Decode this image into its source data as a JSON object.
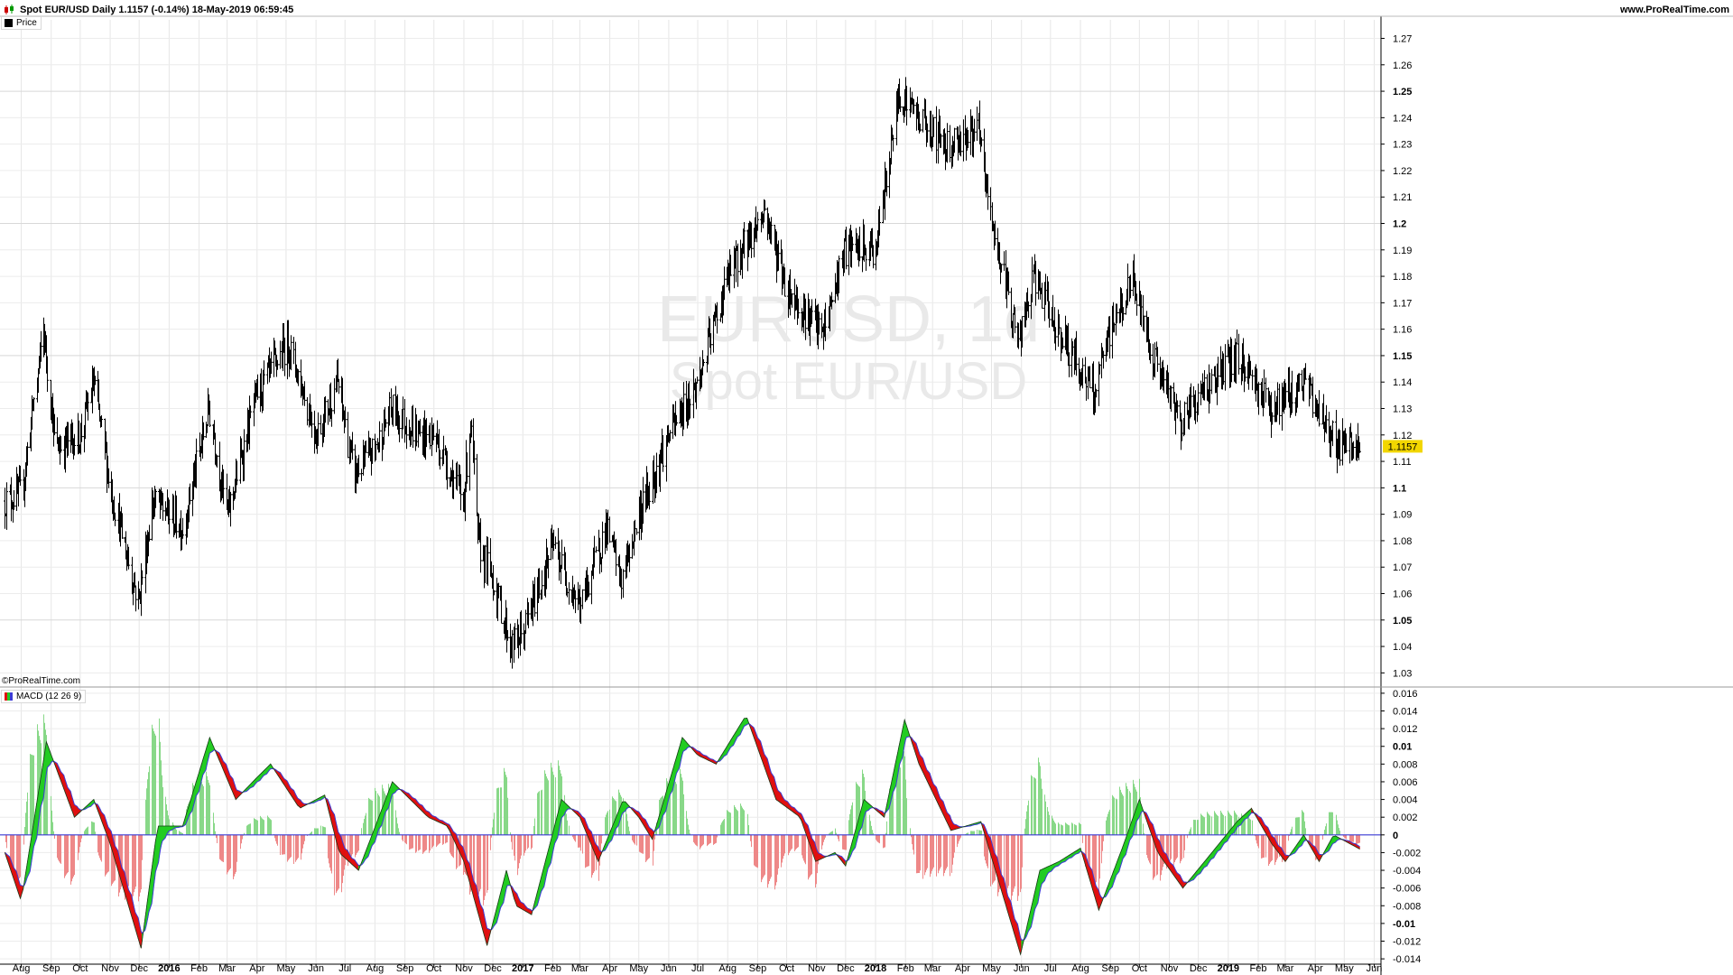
{
  "header": {
    "title": "Spot EUR/USD Daily 1.1157 (-0.14%) 18-May-2019 06:59:45",
    "brand": "www.ProRealTime.com"
  },
  "price_panel": {
    "legend": "Price",
    "legend_color": "#000000",
    "watermark_symbol": "EURUSD, 1d",
    "watermark_name": "Spot EUR/USD",
    "last_price": "1.1157",
    "last_price_bg": "#f2d600",
    "copyright": "©ProRealTime.com"
  },
  "macd_panel": {
    "legend": "MACD (12 26 9)",
    "zero_line_color": "#3b3bd6",
    "up_color": "#22cc22",
    "down_color": "#e01010",
    "hist_pos_color": "#88d888",
    "hist_neg_color": "#ee8888"
  },
  "chart_data": [
    {
      "type": "candlestick",
      "title": "Spot EUR/USD Daily",
      "series_name": "Price",
      "ylim": [
        1.025,
        1.277
      ],
      "y_ticks": [
        "1.03",
        "1.04",
        "1.05",
        "1.06",
        "1.07",
        "1.08",
        "1.09",
        "1.1",
        "1.11",
        "1.12",
        "1.13",
        "1.14",
        "1.15",
        "1.16",
        "1.17",
        "1.18",
        "1.19",
        "1.2",
        "1.21",
        "1.22",
        "1.23",
        "1.24",
        "1.25",
        "1.26",
        "1.27"
      ],
      "y_major_ticks": [
        "1.05",
        "1.1",
        "1.15",
        "1.2",
        "1.25"
      ],
      "x_ticks": [
        "Aug",
        "Sep",
        "Oct",
        "Nov",
        "Dec",
        "2016",
        "Feb",
        "Mar",
        "Apr",
        "May",
        "Jun",
        "Jul",
        "Aug",
        "Sep",
        "Oct",
        "Nov",
        "Dec",
        "2017",
        "Feb",
        "Mar",
        "Apr",
        "May",
        "Jun",
        "Jul",
        "Aug",
        "Sep",
        "Oct",
        "Nov",
        "Dec",
        "2018",
        "Feb",
        "Mar",
        "Apr",
        "May",
        "Jun",
        "Jul",
        "Aug",
        "Sep",
        "Oct",
        "Nov",
        "Dec",
        "2019",
        "Feb",
        "Mar",
        "Apr",
        "May",
        "Jun"
      ],
      "x_year_ticks": [
        "2016",
        "2017",
        "2018",
        "2019"
      ],
      "approx_path": [
        [
          "2015-07-15",
          1.095
        ],
        [
          "2015-08-01",
          1.098
        ],
        [
          "2015-08-24",
          1.16
        ],
        [
          "2015-09-05",
          1.115
        ],
        [
          "2015-10-01",
          1.12
        ],
        [
          "2015-10-15",
          1.14
        ],
        [
          "2015-11-01",
          1.1
        ],
        [
          "2015-11-30",
          1.057
        ],
        [
          "2015-12-15",
          1.095
        ],
        [
          "2016-01-01",
          1.09
        ],
        [
          "2016-01-15",
          1.085
        ],
        [
          "2016-02-11",
          1.13
        ],
        [
          "2016-03-01",
          1.09
        ],
        [
          "2016-03-31",
          1.135
        ],
        [
          "2016-05-03",
          1.155
        ],
        [
          "2016-06-01",
          1.12
        ],
        [
          "2016-06-23",
          1.14
        ],
        [
          "2016-07-10",
          1.105
        ],
        [
          "2016-08-01",
          1.115
        ],
        [
          "2016-08-18",
          1.13
        ],
        [
          "2016-09-15",
          1.12
        ],
        [
          "2016-10-01",
          1.12
        ],
        [
          "2016-10-31",
          1.095
        ],
        [
          "2016-11-08",
          1.125
        ],
        [
          "2016-11-15",
          1.08
        ],
        [
          "2016-12-01",
          1.065
        ],
        [
          "2016-12-20",
          1.04
        ],
        [
          "2017-01-01",
          1.045
        ],
        [
          "2017-02-01",
          1.078
        ],
        [
          "2017-03-01",
          1.055
        ],
        [
          "2017-03-28",
          1.085
        ],
        [
          "2017-04-13",
          1.065
        ],
        [
          "2017-05-01",
          1.09
        ],
        [
          "2017-06-01",
          1.12
        ],
        [
          "2017-07-01",
          1.14
        ],
        [
          "2017-08-01",
          1.18
        ],
        [
          "2017-09-08",
          1.205
        ],
        [
          "2017-10-01",
          1.175
        ],
        [
          "2017-11-07",
          1.158
        ],
        [
          "2017-11-30",
          1.19
        ],
        [
          "2018-01-01",
          1.19
        ],
        [
          "2018-01-25",
          1.25
        ],
        [
          "2018-02-15",
          1.24
        ],
        [
          "2018-03-15",
          1.23
        ],
        [
          "2018-04-17",
          1.235
        ],
        [
          "2018-05-01",
          1.2
        ],
        [
          "2018-05-29",
          1.155
        ],
        [
          "2018-06-14",
          1.18
        ],
        [
          "2018-07-01",
          1.165
        ],
        [
          "2018-08-15",
          1.135
        ],
        [
          "2018-09-01",
          1.16
        ],
        [
          "2018-09-24",
          1.178
        ],
        [
          "2018-10-15",
          1.15
        ],
        [
          "2018-11-12",
          1.125
        ],
        [
          "2018-12-01",
          1.135
        ],
        [
          "2019-01-10",
          1.15
        ],
        [
          "2019-02-15",
          1.13
        ],
        [
          "2019-03-20",
          1.14
        ],
        [
          "2019-04-25",
          1.115
        ],
        [
          "2019-05-17",
          1.1157
        ]
      ],
      "last_value": 1.1157
    },
    {
      "type": "line",
      "title": "MACD (12 26 9)",
      "ylim": [
        -0.0146,
        0.0166
      ],
      "y_ticks": [
        "-0.014",
        "-0.012",
        "-0.01",
        "-0.008",
        "-0.006",
        "-0.004",
        "-0.002",
        "0",
        "0.002",
        "0.004",
        "0.006",
        "0.008",
        "0.01",
        "0.012",
        "0.014",
        "0.016"
      ],
      "y_major_ticks": [
        "-0.01",
        "0",
        "0.01"
      ],
      "series": [
        {
          "approx_path": [
            [
              "2015-07-15",
              -0.002
            ],
            [
              "2015-08-01",
              -0.0075
            ],
            [
              "2015-08-27",
              0.0105
            ],
            [
              "2015-09-25",
              0.002
            ],
            [
              "2015-10-15",
              0.004
            ],
            [
              "2015-11-01",
              -0.001
            ],
            [
              "2015-12-03",
              -0.0128
            ],
            [
              "2015-12-20",
              0.001
            ],
            [
              "2016-01-15",
              0.001
            ],
            [
              "2016-02-12",
              0.011
            ],
            [
              "2016-03-10",
              0.004
            ],
            [
              "2016-04-01",
              0.0065
            ],
            [
              "2016-04-15",
              0.008
            ],
            [
              "2016-05-15",
              0.003
            ],
            [
              "2016-06-10",
              0.0045
            ],
            [
              "2016-06-25",
              -0.002
            ],
            [
              "2016-07-15",
              -0.004
            ],
            [
              "2016-08-19",
              0.006
            ],
            [
              "2016-09-25",
              0.002
            ],
            [
              "2016-10-15",
              0.001
            ],
            [
              "2016-11-01",
              -0.003
            ],
            [
              "2016-11-25",
              -0.0125
            ],
            [
              "2016-12-15",
              -0.004
            ],
            [
              "2016-12-25",
              -0.008
            ],
            [
              "2017-01-10",
              -0.009
            ],
            [
              "2017-02-10",
              0.004
            ],
            [
              "2017-03-01",
              0.002
            ],
            [
              "2017-03-20",
              -0.003
            ],
            [
              "2017-04-15",
              0.004
            ],
            [
              "2017-05-01",
              0.002
            ],
            [
              "2017-05-15",
              -0.0005
            ],
            [
              "2017-06-15",
              0.011
            ],
            [
              "2017-07-01",
              0.009
            ],
            [
              "2017-07-20",
              0.008
            ],
            [
              "2017-08-20",
              0.0135
            ],
            [
              "2017-09-20",
              0.004
            ],
            [
              "2017-10-15",
              0.002
            ],
            [
              "2017-10-31",
              -0.003
            ],
            [
              "2017-11-20",
              -0.002
            ],
            [
              "2017-12-01",
              -0.0035
            ],
            [
              "2017-12-20",
              0.004
            ],
            [
              "2018-01-10",
              0.002
            ],
            [
              "2018-01-31",
              0.013
            ],
            [
              "2018-02-15",
              0.008
            ],
            [
              "2018-03-20",
              0.0005
            ],
            [
              "2018-04-20",
              0.0015
            ],
            [
              "2018-05-31",
              -0.0135
            ],
            [
              "2018-06-20",
              -0.004
            ],
            [
              "2018-07-10",
              -0.003
            ],
            [
              "2018-08-01",
              -0.0015
            ],
            [
              "2018-08-20",
              -0.0085
            ],
            [
              "2018-09-15",
              -0.001
            ],
            [
              "2018-10-01",
              0.004
            ],
            [
              "2018-10-20",
              -0.002
            ],
            [
              "2018-11-15",
              -0.006
            ],
            [
              "2018-12-15",
              -0.002
            ],
            [
              "2019-01-10",
              0.0015
            ],
            [
              "2019-01-25",
              0.003
            ],
            [
              "2019-02-15",
              -0.001
            ],
            [
              "2019-03-01",
              -0.003
            ],
            [
              "2019-03-20",
              0
            ],
            [
              "2019-04-05",
              -0.003
            ],
            [
              "2019-04-20",
              0
            ],
            [
              "2019-05-17",
              -0.0016
            ]
          ]
        }
      ]
    }
  ]
}
